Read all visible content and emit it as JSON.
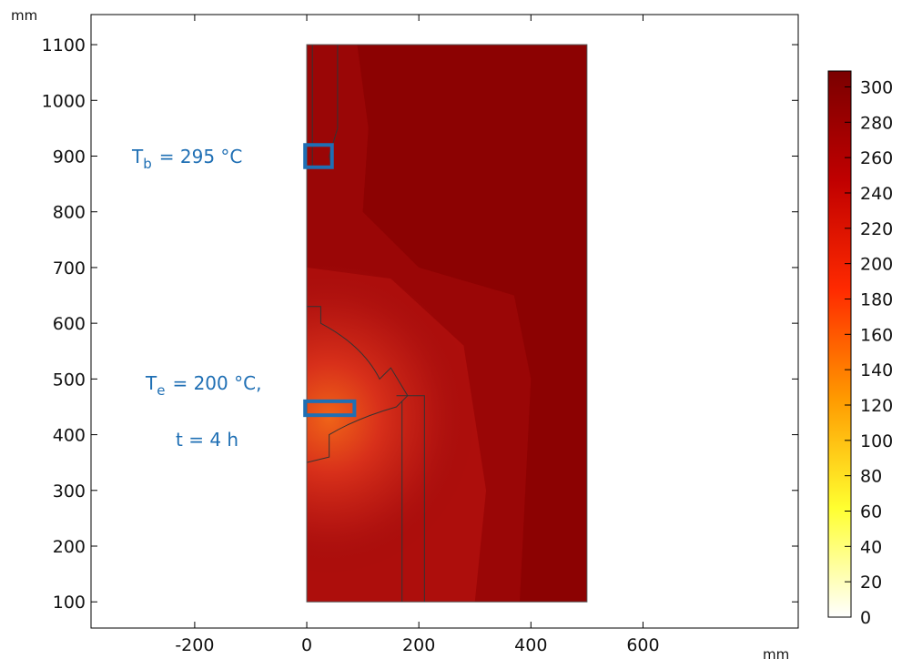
{
  "chart_data": {
    "type": "contour",
    "x_label": "mm",
    "y_label": "mm",
    "xlim": [
      -385,
      877
    ],
    "ylim": [
      53,
      1154
    ],
    "xticks": [
      -200,
      0,
      200,
      400,
      600
    ],
    "yticks": [
      100,
      200,
      300,
      400,
      500,
      600,
      700,
      800,
      900,
      1000,
      1100
    ],
    "colorbar": {
      "clim": [
        0,
        309
      ],
      "ticks": [
        0,
        20,
        40,
        60,
        80,
        100,
        120,
        140,
        160,
        180,
        200,
        220,
        240,
        260,
        280,
        300
      ],
      "colors": [
        "#ffffff",
        "#ffff30",
        "#ff9a00",
        "#ff2a00",
        "#c00000",
        "#7a0000"
      ]
    },
    "annotations": [
      {
        "symbol": "T",
        "subscript": "b",
        "text": "= 295 °C"
      },
      {
        "symbol": "T",
        "subscript": "e",
        "text": "= 200 °C,"
      },
      {
        "text": "t = 4 h"
      }
    ],
    "annotation_color": "#1f6fb4"
  }
}
